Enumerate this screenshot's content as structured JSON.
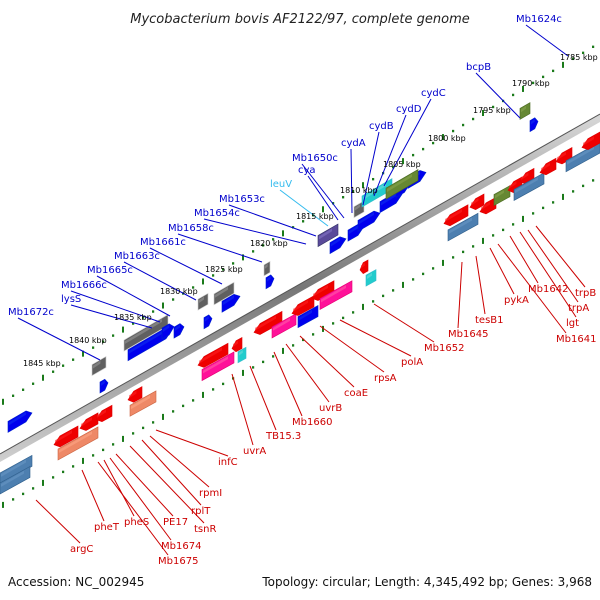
{
  "title": "Mycobacterium bovis AF2122/97, complete genome",
  "footer": {
    "accession": "Accession: NC_002945",
    "summary": "Topology: circular; Length: 4,345,492 bp; Genes: 3,968"
  },
  "colors": {
    "forward_label": "#0000cc",
    "reverse_label": "#cc0000",
    "highlight_label": "#33bbee",
    "forward_gene": "#0000ee",
    "reverse_gene": "#ee0000",
    "tick": "#1a7a1a",
    "backbone": "#6a6a6a"
  },
  "ruler_labels": [
    "1785 kbp",
    "1790 kbp",
    "1795 kbp",
    "1800 kbp",
    "1805 kbp",
    "1810 kbp",
    "1815 kbp",
    "1820 kbp",
    "1825 kbp",
    "1830 kbp",
    "1835 kbp",
    "1840 kbp",
    "1845 kbp"
  ],
  "forward_labels": [
    "Mb1624c",
    "bcpB",
    "cydC",
    "cydD",
    "cydB",
    "cydA",
    "Mb1650c",
    "cya",
    "leuV",
    "Mb1653c",
    "Mb1654c",
    "Mb1658c",
    "Mb1661c",
    "Mb1663c",
    "Mb1665c",
    "Mb1666c",
    "lysS",
    "Mb1672c"
  ],
  "reverse_labels": [
    "trpB",
    "trpA",
    "Mb1642",
    "lgt",
    "Mb1641",
    "pykA",
    "tesB1",
    "Mb1645",
    "Mb1652",
    "polA",
    "rpsA",
    "coaE",
    "uvrB",
    "Mb1660",
    "TB15.3",
    "uvrA",
    "infC",
    "rpmI",
    "rplT",
    "tsnR",
    "PE17",
    "pheS",
    "Mb1674",
    "Mb1675",
    "pheT",
    "argC"
  ]
}
